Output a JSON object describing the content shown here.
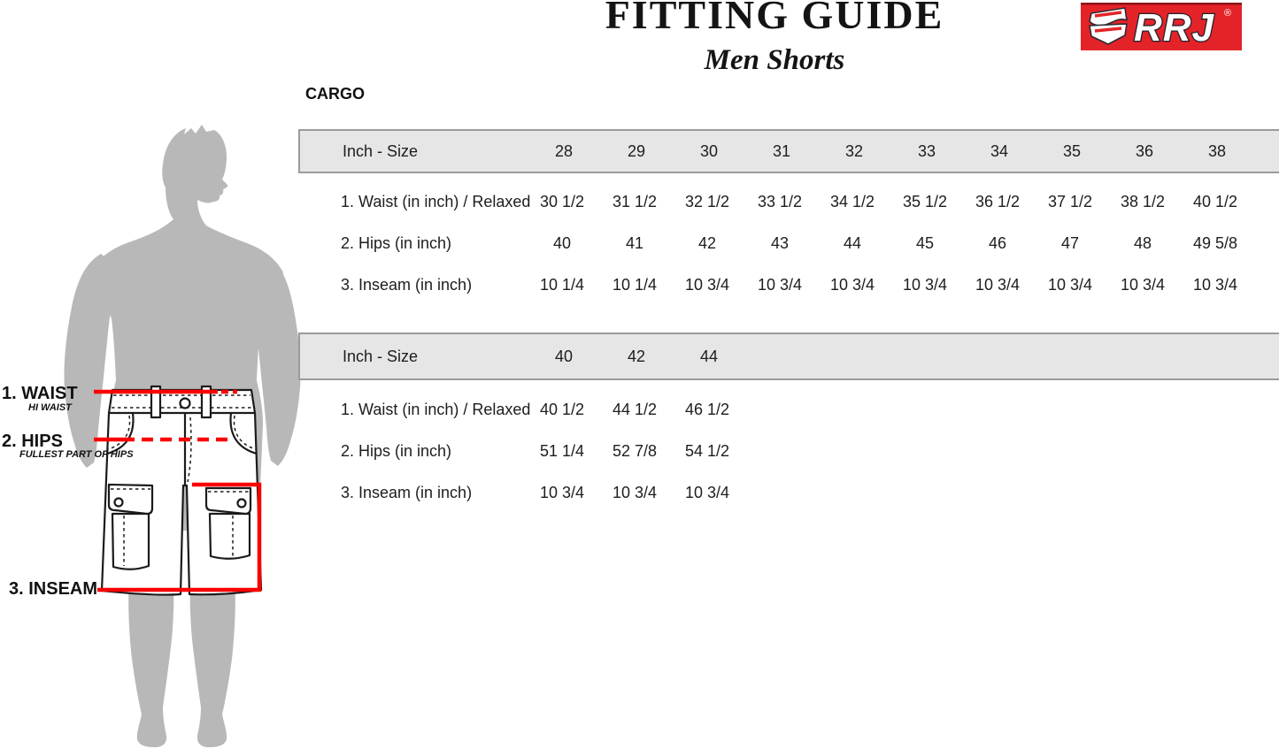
{
  "header": {
    "title": "FITTING GUIDE",
    "subtitle": "Men Shorts",
    "category": "CARGO"
  },
  "logo": {
    "brand": "RRJ",
    "registered_mark": "®",
    "background_color": "#e42328"
  },
  "diagram": {
    "waist_label": "1. WAIST",
    "waist_note": "HI WAIST",
    "hips_label": "2. HIPS",
    "hips_note": "FULLEST PART OF HIPS",
    "inseam_label": "3. INSEAM",
    "measure_line_color": "#fb0000",
    "silhouette_color": "#b8b8b8"
  },
  "tables": [
    {
      "header_label": "Inch - Size",
      "sizes": [
        "28",
        "29",
        "30",
        "31",
        "32",
        "33",
        "34",
        "35",
        "36",
        "38"
      ],
      "rows": [
        {
          "label": "1. Waist (in inch) / Relaxed",
          "values": [
            "30 1/2",
            "31 1/2",
            "32 1/2",
            "33 1/2",
            "34 1/2",
            "35 1/2",
            "36 1/2",
            "37 1/2",
            "38 1/2",
            "40 1/2"
          ]
        },
        {
          "label": "2. Hips (in inch)",
          "values": [
            "40",
            "41",
            "42",
            "43",
            "44",
            "45",
            "46",
            "47",
            "48",
            "49 5/8"
          ]
        },
        {
          "label": "3. Inseam (in inch)",
          "values": [
            "10 1/4",
            "10 1/4",
            "10 3/4",
            "10 3/4",
            "10 3/4",
            "10 3/4",
            "10 3/4",
            "10 3/4",
            "10 3/4",
            "10 3/4"
          ]
        }
      ]
    },
    {
      "header_label": "Inch - Size",
      "sizes": [
        "40",
        "42",
        "44"
      ],
      "rows": [
        {
          "label": "1. Waist (in inch) / Relaxed",
          "values": [
            "40 1/2",
            "44 1/2",
            "46 1/2"
          ]
        },
        {
          "label": "2. Hips (in inch)",
          "values": [
            "51 1/4",
            "52 7/8",
            "54 1/2"
          ]
        },
        {
          "label": "3. Inseam (in inch)",
          "values": [
            "10 3/4",
            "10 3/4",
            "10 3/4"
          ]
        }
      ]
    }
  ]
}
